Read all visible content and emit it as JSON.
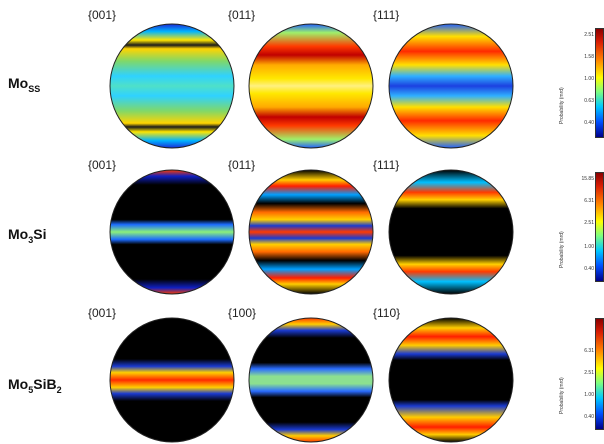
{
  "rows": [
    {
      "phase_main": "Mo",
      "phase_sub": "SS",
      "plane_labels": [
        "{001}",
        "{011}",
        "{111}"
      ],
      "pole_figures": [
        {
          "bands": [
            [
              "#1a2bd8",
              0.0
            ],
            [
              "#00b4ff",
              0.06
            ],
            [
              "#ffe500",
              0.13
            ],
            [
              "#1b1b1b",
              0.17
            ],
            [
              "#ffd400",
              0.2
            ],
            [
              "#7fd86a",
              0.3
            ],
            [
              "#2fd2ff",
              0.42
            ],
            [
              "#4fe0c8",
              0.5
            ],
            [
              "#2fd2ff",
              0.58
            ],
            [
              "#7fd86a",
              0.7
            ],
            [
              "#ffd400",
              0.8
            ],
            [
              "#1b1b1b",
              0.83
            ],
            [
              "#ffe500",
              0.87
            ],
            [
              "#00b4ff",
              0.94
            ],
            [
              "#1a2bd8",
              1.0
            ]
          ]
        },
        {
          "bands": [
            [
              "#2060ff",
              0.0
            ],
            [
              "#9ff06a",
              0.07
            ],
            [
              "#ff3a00",
              0.18
            ],
            [
              "#c00000",
              0.25
            ],
            [
              "#ffaa00",
              0.33
            ],
            [
              "#ffe800",
              0.44
            ],
            [
              "#fff080",
              0.5
            ],
            [
              "#ffe800",
              0.56
            ],
            [
              "#ffaa00",
              0.67
            ],
            [
              "#c00000",
              0.75
            ],
            [
              "#ff3a00",
              0.82
            ],
            [
              "#9ff06a",
              0.93
            ],
            [
              "#2060ff",
              1.0
            ]
          ]
        },
        {
          "bands": [
            [
              "#2060ff",
              0.0
            ],
            [
              "#ffe000",
              0.1
            ],
            [
              "#ff2a00",
              0.22
            ],
            [
              "#ffe000",
              0.33
            ],
            [
              "#30b0ff",
              0.42
            ],
            [
              "#1c40e0",
              0.5
            ],
            [
              "#30b0ff",
              0.58
            ],
            [
              "#ffe000",
              0.67
            ],
            [
              "#ff2a00",
              0.78
            ],
            [
              "#ffe000",
              0.9
            ],
            [
              "#2060ff",
              1.0
            ]
          ]
        }
      ],
      "colorbar": {
        "title": "Probability (mrd)",
        "ticks": [
          "2.51",
          "1.58",
          "1.00",
          "0.63",
          "0.40"
        ]
      }
    },
    {
      "phase_main": "Mo",
      "phase_sub": "3",
      "phase_tail": "Si",
      "plane_labels": [
        "{001}",
        "{011}",
        "{111}"
      ],
      "pole_figures": [
        {
          "bands": [
            [
              "#ff3a00",
              0.0
            ],
            [
              "#1020c0",
              0.05
            ],
            [
              "#000000",
              0.12
            ],
            [
              "#000000",
              0.4
            ],
            [
              "#1c6cff",
              0.44
            ],
            [
              "#8cf07a",
              0.5
            ],
            [
              "#1c6cff",
              0.56
            ],
            [
              "#000000",
              0.6
            ],
            [
              "#000000",
              0.88
            ],
            [
              "#1020c0",
              0.95
            ],
            [
              "#ff3a00",
              1.0
            ]
          ]
        },
        {
          "bands": [
            [
              "#000000",
              0.0
            ],
            [
              "#ffcc00",
              0.08
            ],
            [
              "#ff1e00",
              0.13
            ],
            [
              "#00a0ff",
              0.2
            ],
            [
              "#000000",
              0.27
            ],
            [
              "#ff6a00",
              0.34
            ],
            [
              "#ffd000",
              0.4
            ],
            [
              "#1a3ad0",
              0.45
            ],
            [
              "#ff3a00",
              0.5
            ],
            [
              "#1a3ad0",
              0.55
            ],
            [
              "#ffd000",
              0.6
            ],
            [
              "#ff6a00",
              0.66
            ],
            [
              "#000000",
              0.73
            ],
            [
              "#00a0ff",
              0.8
            ],
            [
              "#ff1e00",
              0.87
            ],
            [
              "#ffcc00",
              0.92
            ],
            [
              "#000000",
              1.0
            ]
          ]
        },
        {
          "bands": [
            [
              "#000000",
              0.0
            ],
            [
              "#00c0ff",
              0.1
            ],
            [
              "#ff3a00",
              0.18
            ],
            [
              "#ffd000",
              0.24
            ],
            [
              "#000000",
              0.31
            ],
            [
              "#000000",
              0.69
            ],
            [
              "#ffd000",
              0.76
            ],
            [
              "#ff3a00",
              0.82
            ],
            [
              "#00c0ff",
              0.9
            ],
            [
              "#000000",
              1.0
            ]
          ]
        }
      ],
      "colorbar": {
        "title": "Probability (mrd)",
        "ticks": [
          "15.85",
          "6.31",
          "2.51",
          "1.00",
          "0.40"
        ]
      }
    },
    {
      "phase_main": "Mo",
      "phase_sub": "5",
      "phase_tail": "SiB",
      "phase_sub2": "2",
      "plane_labels": [
        "{001}",
        "{100}",
        "{110}"
      ],
      "pole_figures": [
        {
          "bands": [
            [
              "#000000",
              0.0
            ],
            [
              "#000000",
              0.33
            ],
            [
              "#1a3ad0",
              0.39
            ],
            [
              "#ffd000",
              0.44
            ],
            [
              "#ff2a00",
              0.5
            ],
            [
              "#ffd000",
              0.56
            ],
            [
              "#1a3ad0",
              0.61
            ],
            [
              "#000000",
              0.67
            ],
            [
              "#000000",
              1.0
            ]
          ]
        },
        {
          "bands": [
            [
              "#ff3a00",
              0.0
            ],
            [
              "#ffcc00",
              0.05
            ],
            [
              "#1a3ad0",
              0.1
            ],
            [
              "#000000",
              0.16
            ],
            [
              "#000000",
              0.36
            ],
            [
              "#2a6cff",
              0.41
            ],
            [
              "#8ce090",
              0.47
            ],
            [
              "#8ce090",
              0.53
            ],
            [
              "#2a6cff",
              0.59
            ],
            [
              "#000000",
              0.64
            ],
            [
              "#000000",
              0.84
            ],
            [
              "#1a3ad0",
              0.9
            ],
            [
              "#ffcc00",
              0.95
            ],
            [
              "#ff3a00",
              1.0
            ]
          ]
        },
        {
          "bands": [
            [
              "#000000",
              0.0
            ],
            [
              "#ffcc00",
              0.08
            ],
            [
              "#ff1e00",
              0.15
            ],
            [
              "#ffcc00",
              0.22
            ],
            [
              "#1a3ad0",
              0.29
            ],
            [
              "#000000",
              0.34
            ],
            [
              "#000000",
              0.66
            ],
            [
              "#1a3ad0",
              0.71
            ],
            [
              "#ffcc00",
              0.8
            ],
            [
              "#ff1e00",
              0.88
            ],
            [
              "#ffcc00",
              0.94
            ],
            [
              "#000000",
              1.0
            ]
          ]
        }
      ],
      "colorbar": {
        "title": "Probability (mrd)",
        "ticks": [
          "6.31",
          "2.51",
          "1.00",
          "0.40"
        ]
      }
    }
  ]
}
